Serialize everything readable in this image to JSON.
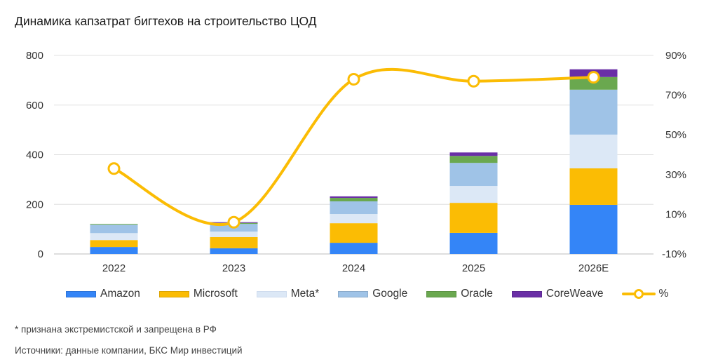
{
  "title": "Динамика капзатрат бигтехов на строительство ЦОД",
  "footnote": "* признана экстремистской и запрещена в РФ",
  "source": "Источники: данные компании, БКС Мир инвестиций",
  "chart_data": {
    "type": "bar",
    "stacked": true,
    "title": "Динамика капзатрат бигтехов на строительство ЦОД",
    "categories": [
      "2022",
      "2023",
      "2024",
      "2025",
      "2026E"
    ],
    "series": [
      {
        "name": "Amazon",
        "color": "#3485f7",
        "values": [
          28,
          23,
          45,
          85,
          198
        ]
      },
      {
        "name": "Microsoft",
        "color": "#fbbc04",
        "values": [
          28,
          45,
          79,
          121,
          147
        ]
      },
      {
        "name": "Meta*",
        "color": "#dce8f6",
        "values": [
          28,
          22,
          37,
          68,
          136
        ]
      },
      {
        "name": "Google",
        "color": "#9fc3e7",
        "values": [
          34,
          31,
          51,
          93,
          181
        ]
      },
      {
        "name": "Oracle",
        "color": "#6aa84f",
        "values": [
          3,
          4,
          14,
          28,
          51
        ]
      },
      {
        "name": "CoreWeave",
        "color": "#6a2fa6",
        "values": [
          0,
          3,
          6,
          14,
          31
        ]
      }
    ],
    "line_series": {
      "name": "%",
      "color": "#fbbc04",
      "axis": "right",
      "values": [
        33,
        6,
        78,
        77,
        79
      ],
      "smooth": true
    },
    "y_left": {
      "ticks": [
        "0",
        "200",
        "400",
        "600",
        "800"
      ],
      "ylim": [
        0,
        800
      ]
    },
    "y_right": {
      "ticks": [
        "-10%",
        "10%",
        "30%",
        "50%",
        "70%",
        "90%"
      ],
      "ylim": [
        -10,
        90
      ]
    },
    "grid": true,
    "legend_position": "bottom",
    "xlabel": "",
    "ylabel": ""
  }
}
